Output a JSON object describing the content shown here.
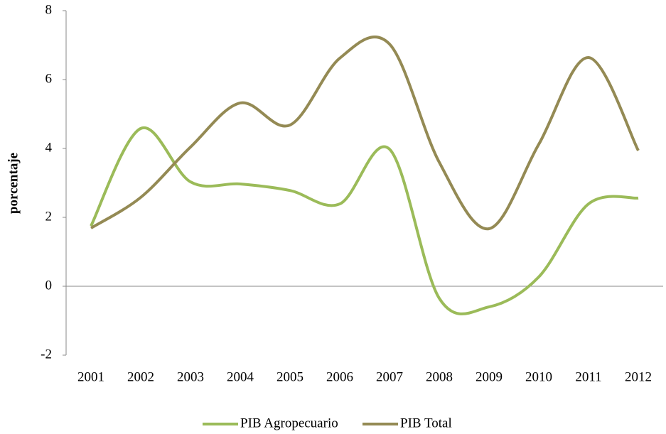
{
  "chart_data": {
    "type": "line",
    "y_label": "porcentaje",
    "categories": [
      "2001",
      "2002",
      "2003",
      "2004",
      "2005",
      "2006",
      "2007",
      "2008",
      "2009",
      "2010",
      "2011",
      "2012"
    ],
    "series": [
      {
        "name": "PIB Agropecuario",
        "color": "#9bbb59",
        "values": [
          1.75,
          4.58,
          3.03,
          2.97,
          2.78,
          2.39,
          3.98,
          -0.35,
          -0.6,
          0.27,
          2.39,
          2.56
        ]
      },
      {
        "name": "PIB Total",
        "color": "#948a54",
        "values": [
          1.69,
          2.58,
          4.04,
          5.32,
          4.68,
          6.62,
          7.03,
          3.6,
          1.67,
          4.12,
          6.64,
          3.94
        ]
      }
    ],
    "ylim": [
      -2,
      8
    ],
    "yticks": [
      -2,
      0,
      2,
      4,
      6,
      8
    ],
    "smooth": true,
    "legend": "bottom"
  }
}
